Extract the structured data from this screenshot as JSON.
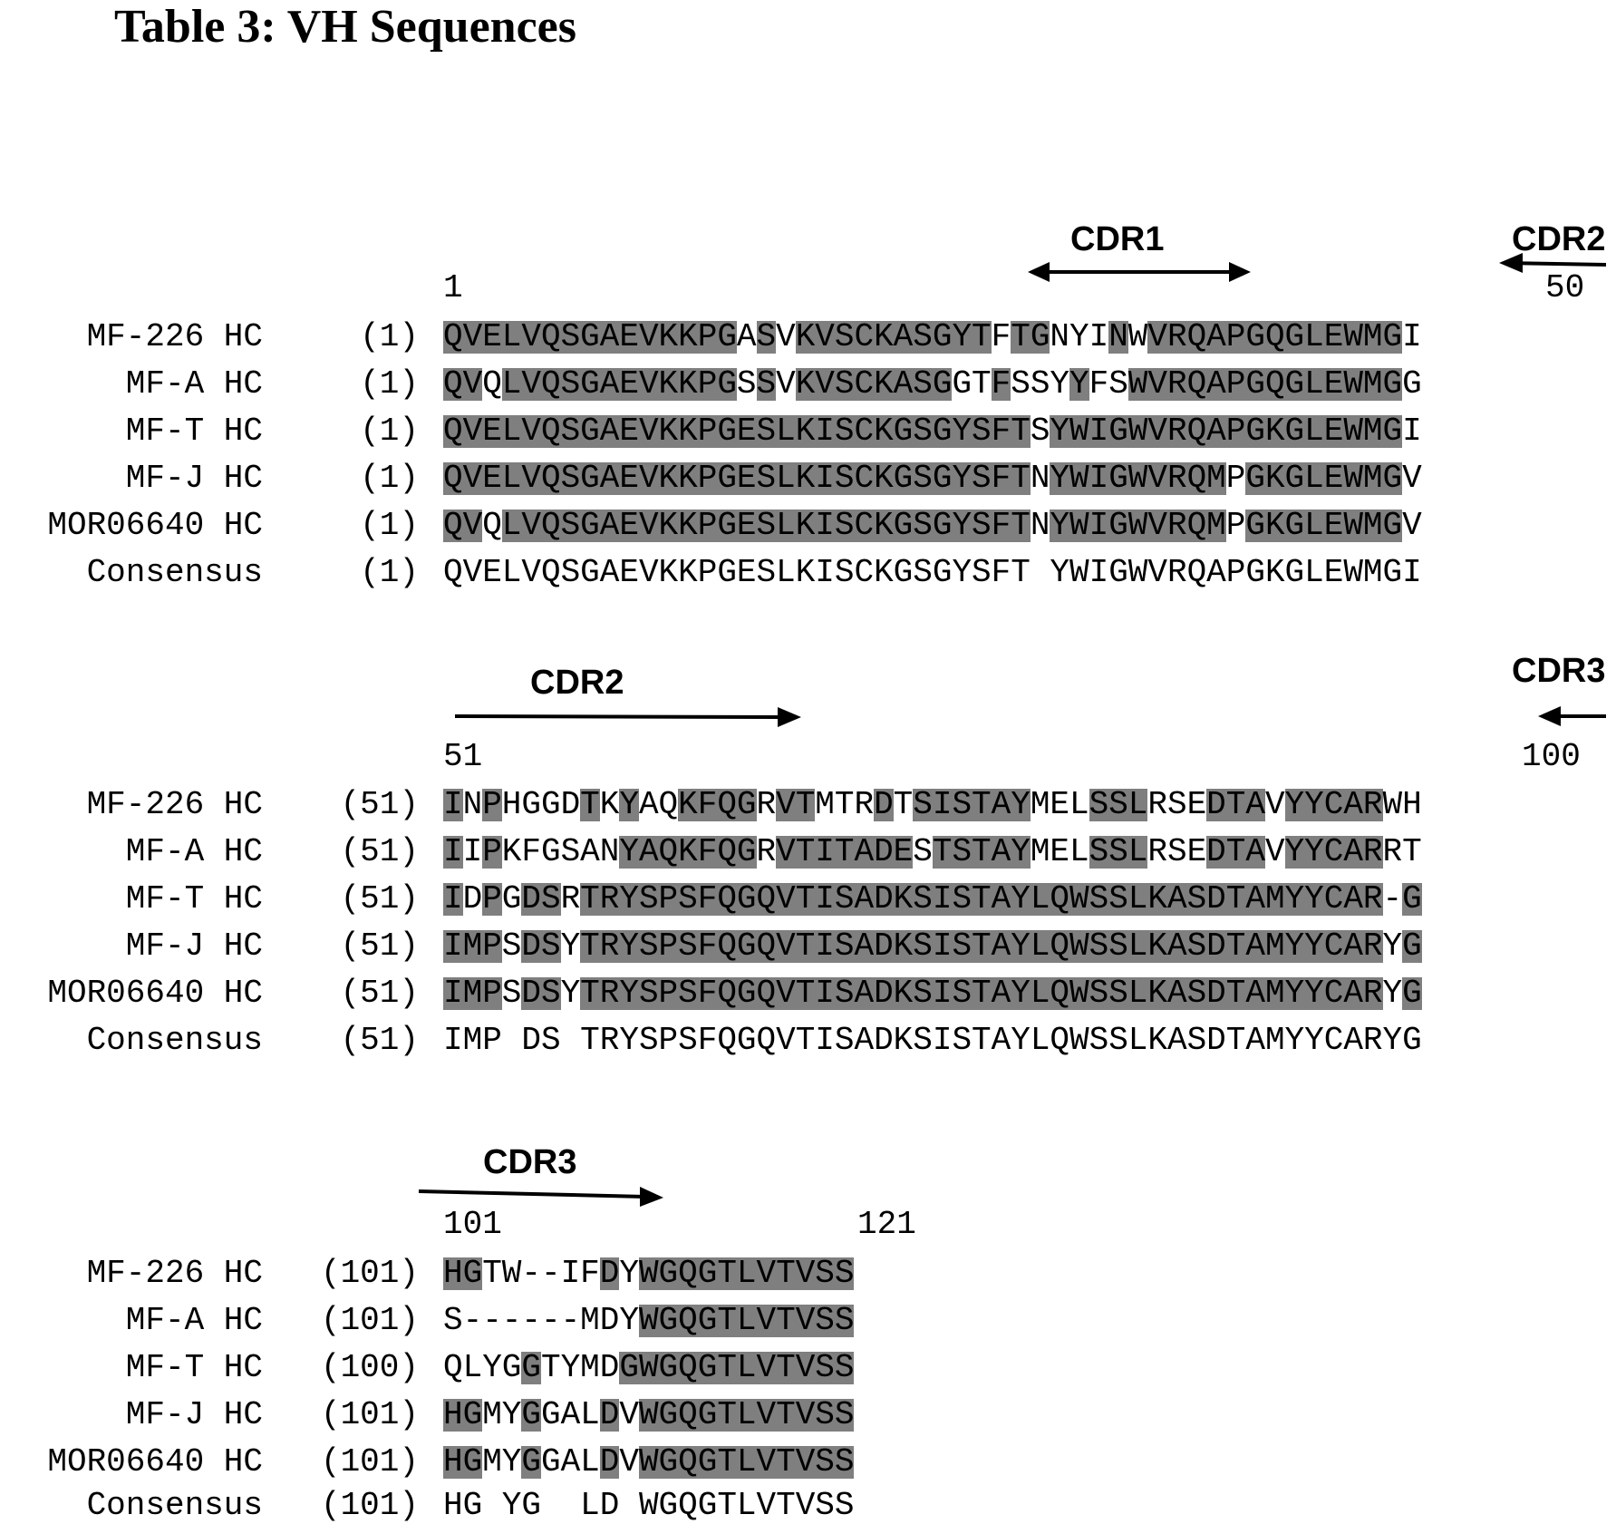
{
  "title": "Table 3: VH Sequences",
  "blocks": [
    {
      "start_label": "1",
      "end_label": "50",
      "cdr_labels": [
        "CDR1",
        "CDR2"
      ],
      "rows": [
        {
          "name": "MF-226 HC",
          "num": "(1)",
          "seq": "QVELVQSGAEVKKPGASVKVSCKASGYTFTGNYINWVRQAPGQGLEWMGI",
          "hl": "11111111111111101011111111110110001011111111111110"
        },
        {
          "name": "MF-A HC",
          "num": "(1)",
          "seq": "QVQLVQSGAEVKKPGSSVKVSCKASGGTFSSYYFSWVRQAPGQGLEWMGG",
          "hl": "11011111111111101011111111001000100111111111111110"
        },
        {
          "name": "MF-T HC",
          "num": "(1)",
          "seq": "QVELVQSGAEVKKPGESLKISCKGSGYSFTSYWIGWVRQAPGKGLEWMGI",
          "hl": "11111111111111111111111111111101111111111111111110"
        },
        {
          "name": "MF-J HC",
          "num": "(1)",
          "seq": "QVELVQSGAEVKKPGESLKISCKGSGYSFTNYWIGWVRQMPGKGLEWMGV",
          "hl": "11111111111111111111111111111101111111110111111110"
        },
        {
          "name": "MOR06640 HC",
          "num": "(1)",
          "seq": "QVQLVQSGAEVKKPGESLKISCKGSGYSFTNYWIGWVRQMPGKGLEWMGV",
          "hl": "11011111111111111111111111111101111111110111111110"
        },
        {
          "name": "Consensus",
          "num": "(1)",
          "seq": "QVELVQSGAEVKKPGESLKISCKGSGYSFT YWIGWVRQAPGKGLEWMGI",
          "hl": "00000000000000000000000000000000000000000000000000"
        }
      ]
    },
    {
      "start_label": "51",
      "end_label": "100",
      "cdr_labels": [
        "CDR2",
        "CDR3"
      ],
      "rows": [
        {
          "name": "MF-226 HC",
          "num": "(51)",
          "seq": "INPHGGDTKYAQKFQGRVTMTRDTSISTAYMELSSLRSEDTAVYYCARWH",
          "hl": "10100001010011110110001011111100011100011101111100"
        },
        {
          "name": "MF-A HC",
          "num": "(51)",
          "seq": "IIPKFGSANYAQKFQGRVTITADESTSTAYMELSSLRSEDTAVYYCARRT",
          "hl": "10100000011111110111111101111100011100011101111100"
        },
        {
          "name": "MF-T HC",
          "num": "(51)",
          "seq": "IDPGDSRTRYSPSFQGQVTISADKSISTAYLQWSSLKASDTAMYYCAR-G",
          "hl": "10101101111111111111111111111111111111111111111101"
        },
        {
          "name": "MF-J HC",
          "num": "(51)",
          "seq": "IMPSDSYTRYSPSFQGQVTISADKSISTAYLQWSSLKASDTAMYYCARYG",
          "hl": "11101101111111111111111111111111111111111111111101"
        },
        {
          "name": "MOR06640 HC",
          "num": "(51)",
          "seq": "IMPSDSYTRYSPSFQGQVTISADKSISTAYLQWSSLKASDTAMYYCARYG",
          "hl": "11101101111111111111111111111111111111111111111101"
        },
        {
          "name": "Consensus",
          "num": "(51)",
          "seq": "IMP DS TRYSPSFQGQVTISADKSISTAYLQWSSLKASDTAMYYCARYG",
          "hl": "00000000000000000000000000000000000000000000000000"
        }
      ]
    },
    {
      "start_label": "101",
      "end_label": "121",
      "cdr_labels": [
        "CDR3"
      ],
      "rows": [
        {
          "name": "MF-226 HC",
          "num": "(101)",
          "seq": "HGTW--IFDYWGQGTLVTVSS",
          "hl": "110000001011111111111"
        },
        {
          "name": "MF-A HC",
          "num": "(101)",
          "seq": "S------MDYWGQGTLVTVSS",
          "hl": "000000000011111111111"
        },
        {
          "name": "MF-T HC",
          "num": "(100)",
          "seq": "QLYGGTYMDGWGQGTLVTVSS",
          "hl": "000010000111111111111"
        },
        {
          "name": "MF-J HC",
          "num": "(101)",
          "seq": "HGMYGGALDVWGQGTLVTVSS",
          "hl": "110010001011111111111"
        },
        {
          "name": "MOR06640 HC",
          "num": "(101)",
          "seq": "HGMYGGALDVWGQGTLVTVSS",
          "hl": "110010001011111111111"
        },
        {
          "name": "Consensus",
          "num": "(101)",
          "seq": "HG YG  LD WGQGTLVTVSS",
          "hl": "000000000000000000000"
        }
      ]
    }
  ]
}
